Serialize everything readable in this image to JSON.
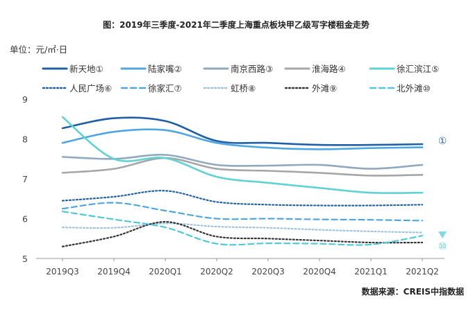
{
  "chart_data": {
    "type": "line",
    "title": "图：2019年三季度-2021年二季度上海重点板块甲乙级写字楼租金走势",
    "ylabel": "单位：元/㎡·日",
    "xlabel": "",
    "source": "数据来源：CREIS中指数据",
    "categories": [
      "2019Q3",
      "2019Q4",
      "2020Q1",
      "2020Q2",
      "2020Q3",
      "2020Q4",
      "2021Q1",
      "2021Q2"
    ],
    "ylim": [
      5,
      9
    ],
    "yticks": [
      "5",
      "6",
      "7",
      "8",
      "9"
    ],
    "grid": false,
    "legend_position": "top",
    "arrow_label_top": "①",
    "arrow_label_bottom": "⑩",
    "series": [
      {
        "name": "新天地①",
        "color": "#1f5fa8",
        "style": "solid",
        "values": [
          8.27,
          8.52,
          8.45,
          7.95,
          7.9,
          7.85,
          7.85,
          7.87
        ]
      },
      {
        "name": "陆家嘴②",
        "color": "#4ea6e0",
        "style": "solid",
        "values": [
          7.9,
          8.18,
          8.22,
          7.9,
          7.78,
          7.74,
          7.77,
          7.79
        ]
      },
      {
        "name": "南京西路③",
        "color": "#8fa9bf",
        "style": "solid",
        "values": [
          7.55,
          7.5,
          7.6,
          7.35,
          7.33,
          7.35,
          7.25,
          7.35
        ]
      },
      {
        "name": "淮海路④",
        "color": "#a6a6a6",
        "style": "solid",
        "values": [
          7.15,
          7.25,
          7.52,
          7.25,
          7.2,
          7.15,
          7.08,
          7.1
        ]
      },
      {
        "name": "徐汇滨江⑤",
        "color": "#5fd3d3",
        "style": "solid",
        "values": [
          8.55,
          7.5,
          7.52,
          7.05,
          6.9,
          6.77,
          6.65,
          6.65
        ]
      },
      {
        "name": "人民广场⑥",
        "color": "#1f5fa8",
        "style": "dotted",
        "values": [
          6.45,
          6.55,
          6.7,
          6.42,
          6.35,
          6.33,
          6.33,
          6.35
        ]
      },
      {
        "name": "徐家汇⑦",
        "color": "#4ea6e0",
        "style": "dashed",
        "values": [
          6.25,
          6.4,
          6.2,
          6.0,
          6.0,
          5.98,
          5.97,
          5.95
        ]
      },
      {
        "name": "虹桥⑧",
        "color": "#9fc2e0",
        "style": "dotted",
        "values": [
          5.78,
          5.77,
          5.88,
          5.8,
          5.77,
          5.72,
          5.68,
          5.65
        ]
      },
      {
        "name": "外滩⑨",
        "color": "#333333",
        "style": "dotted",
        "values": [
          5.3,
          5.55,
          5.92,
          5.55,
          5.5,
          5.45,
          5.4,
          5.4
        ]
      },
      {
        "name": "北外滩⑩",
        "color": "#4ec9d9",
        "style": "dashed",
        "values": [
          6.18,
          5.98,
          5.78,
          5.37,
          5.38,
          5.37,
          5.35,
          5.57
        ]
      }
    ]
  }
}
